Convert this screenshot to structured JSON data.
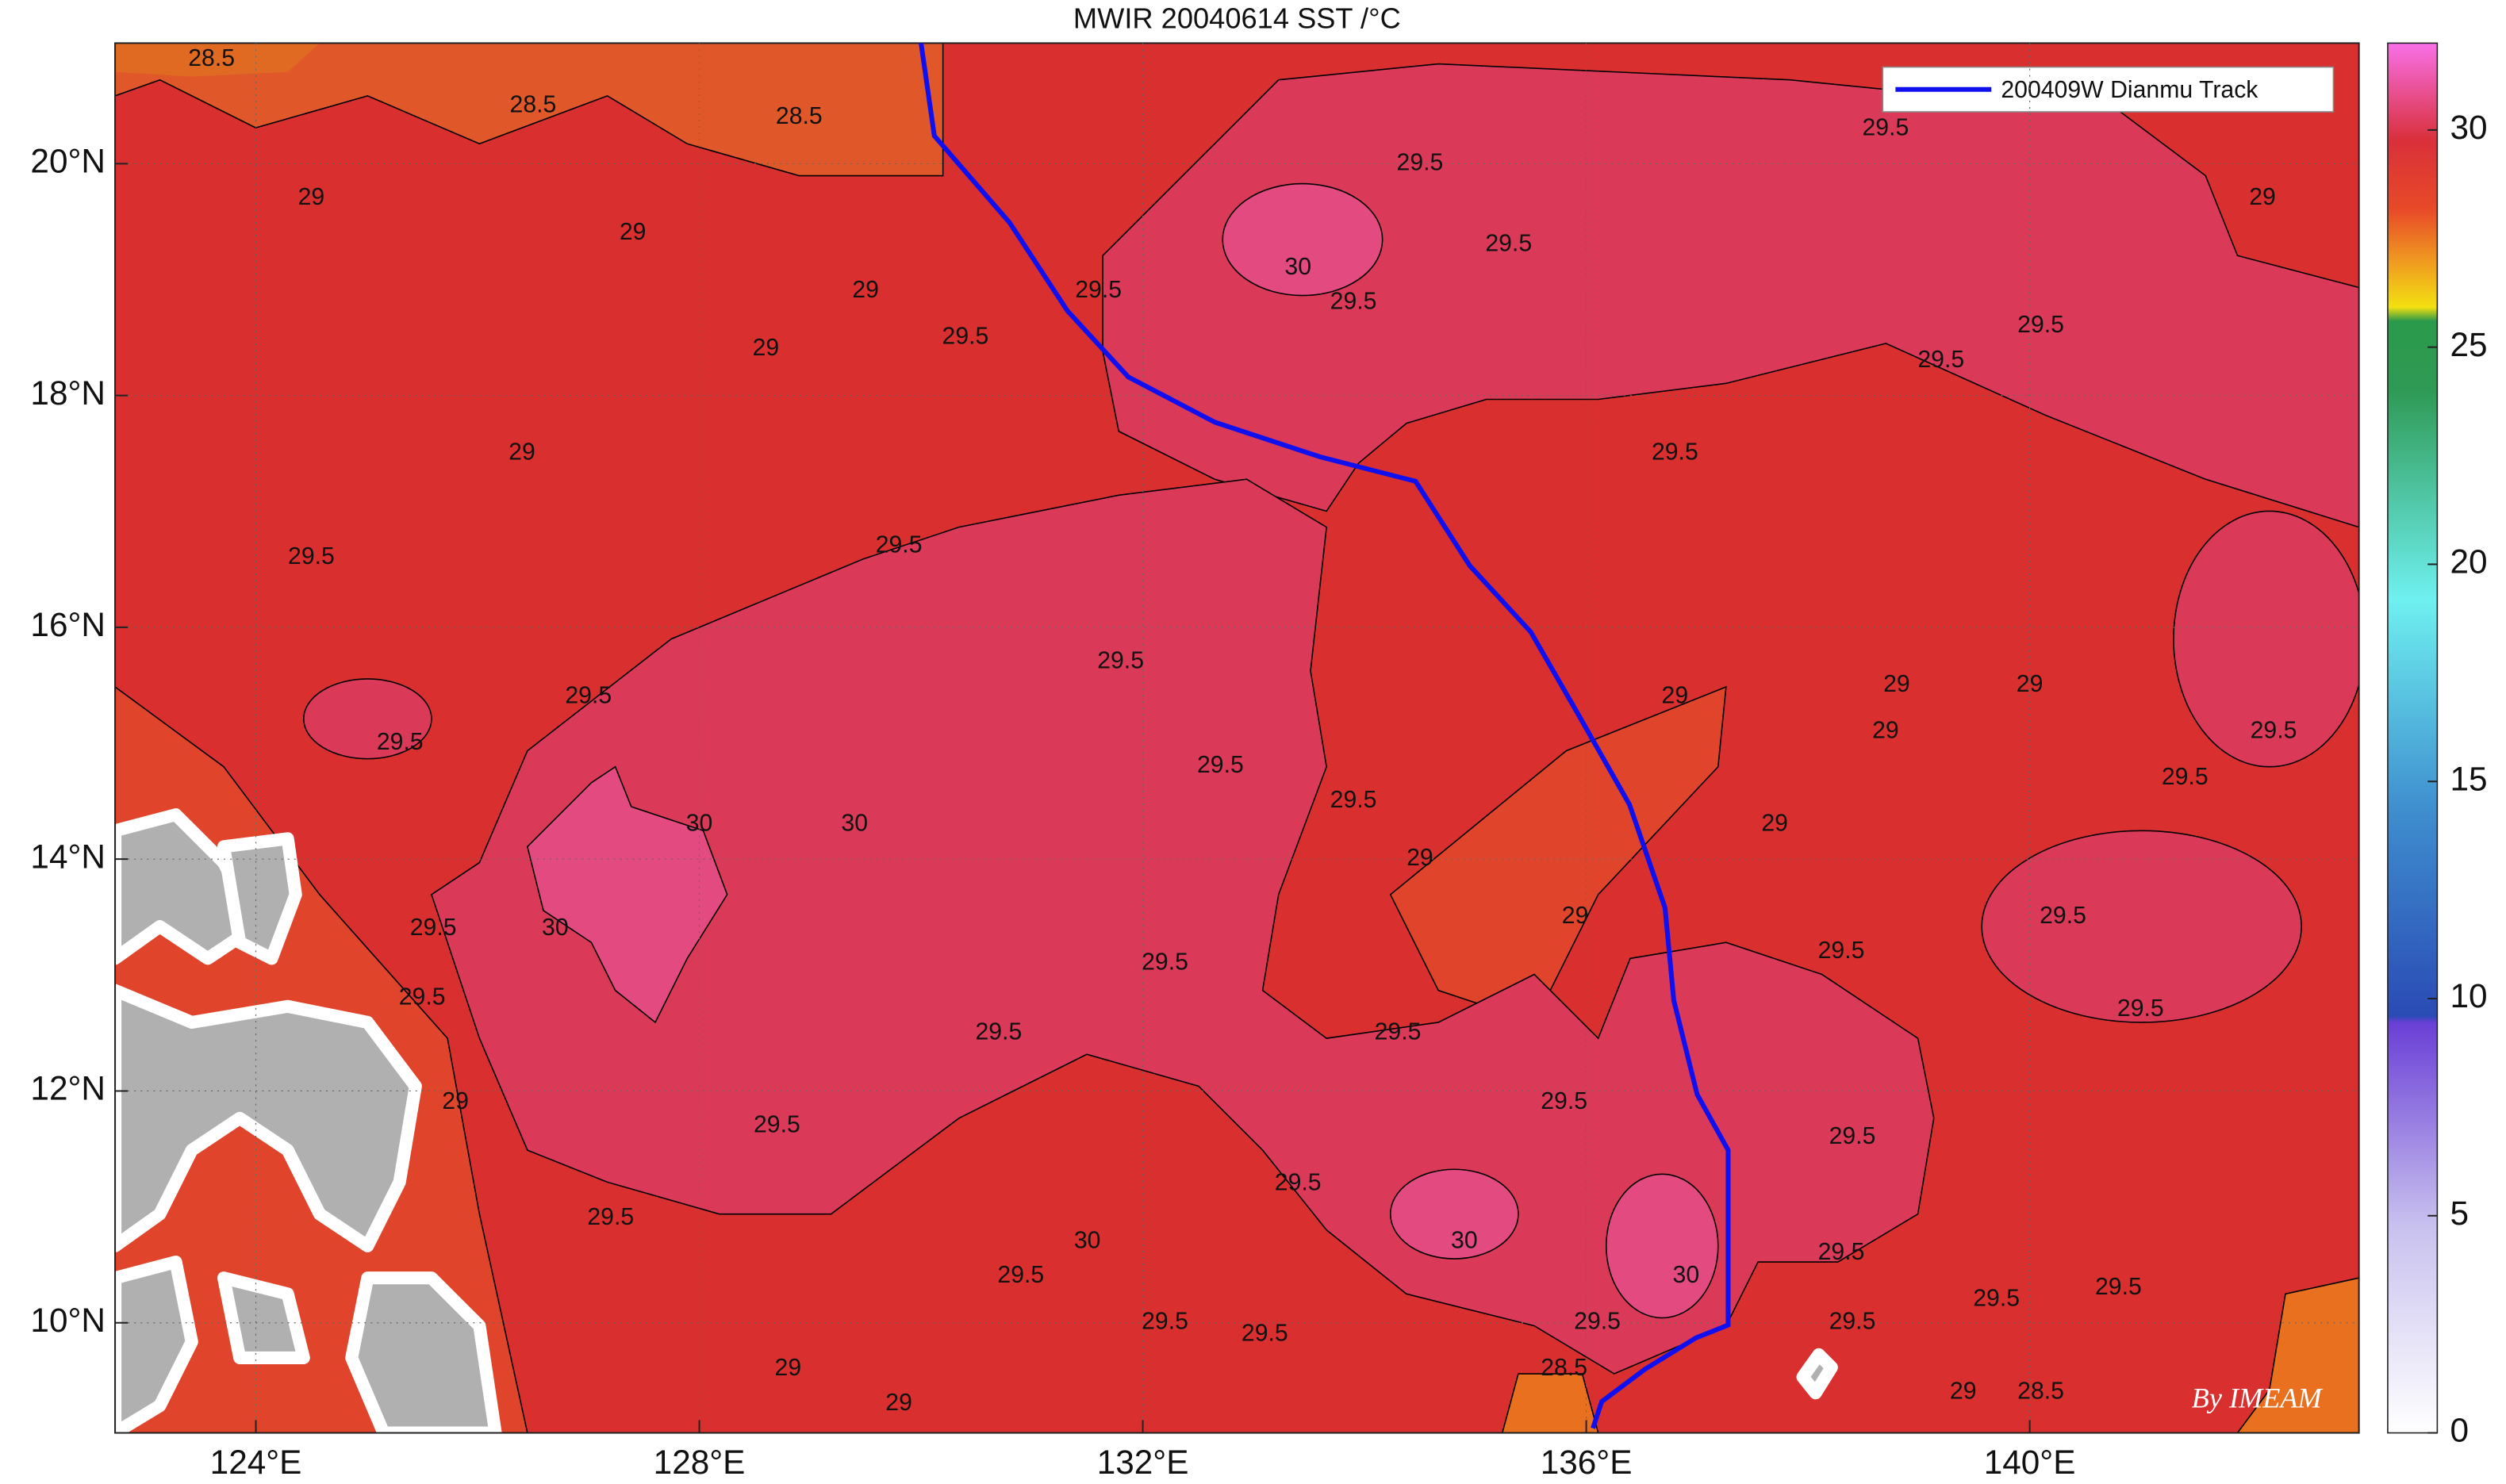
{
  "map": {
    "title": "MWIR 20040614 SST /°C",
    "lon_range": [
      122.73,
      142.97
    ],
    "lat_range": [
      9.05,
      21.04
    ],
    "lon_ticks": [
      {
        "value": 124,
        "label": "124°E"
      },
      {
        "value": 128,
        "label": "128°E"
      },
      {
        "value": 132,
        "label": "132°E"
      },
      {
        "value": 136,
        "label": "136°E"
      },
      {
        "value": 140,
        "label": "140°E"
      }
    ],
    "lat_ticks": [
      {
        "value": 10,
        "label": "10°N"
      },
      {
        "value": 12,
        "label": "12°N"
      },
      {
        "value": 14,
        "label": "14°N"
      },
      {
        "value": 16,
        "label": "16°N"
      },
      {
        "value": 18,
        "label": "18°N"
      },
      {
        "value": 20,
        "label": "20°N"
      }
    ],
    "track": {
      "name": "200409W Dianmu Track",
      "color": "#1010ee",
      "lon": [
        130.0,
        130.12,
        130.8,
        131.32,
        131.87,
        132.65,
        133.6,
        134.46,
        134.95,
        135.5,
        135.94,
        136.39,
        136.71,
        136.79,
        137.0,
        137.28,
        137.28,
        136.99,
        136.53,
        136.14,
        136.06
      ],
      "lat": [
        21.04,
        20.24,
        19.49,
        18.73,
        18.16,
        17.77,
        17.47,
        17.26,
        16.53,
        15.96,
        15.23,
        14.47,
        13.58,
        12.78,
        11.97,
        11.49,
        9.98,
        9.87,
        9.6,
        9.32,
        9.09
      ]
    },
    "contour_labels": [
      {
        "text": "28.5",
        "lon": 123.6,
        "lat": 20.9
      },
      {
        "text": "28.5",
        "lon": 126.5,
        "lat": 20.5
      },
      {
        "text": "28.5",
        "lon": 128.9,
        "lat": 20.4
      },
      {
        "text": "29",
        "lon": 124.5,
        "lat": 19.7
      },
      {
        "text": "29",
        "lon": 127.4,
        "lat": 19.4
      },
      {
        "text": "29",
        "lon": 129.5,
        "lat": 18.9
      },
      {
        "text": "29",
        "lon": 128.6,
        "lat": 18.4
      },
      {
        "text": "29.5",
        "lon": 130.4,
        "lat": 18.5
      },
      {
        "text": "29.5",
        "lon": 131.6,
        "lat": 18.9
      },
      {
        "text": "30",
        "lon": 133.4,
        "lat": 19.1
      },
      {
        "text": "29.5",
        "lon": 133.9,
        "lat": 18.8
      },
      {
        "text": "29.5",
        "lon": 134.5,
        "lat": 20.0
      },
      {
        "text": "29.5",
        "lon": 135.3,
        "lat": 19.3
      },
      {
        "text": "29.5",
        "lon": 138.7,
        "lat": 20.3
      },
      {
        "text": "29",
        "lon": 142.1,
        "lat": 19.7
      },
      {
        "text": "29.5",
        "lon": 140.1,
        "lat": 18.6
      },
      {
        "text": "29.5",
        "lon": 139.2,
        "lat": 18.3
      },
      {
        "text": "29.5",
        "lon": 136.8,
        "lat": 17.5
      },
      {
        "text": "29",
        "lon": 126.4,
        "lat": 17.5
      },
      {
        "text": "29.5",
        "lon": 124.5,
        "lat": 16.6
      },
      {
        "text": "29.5",
        "lon": 129.8,
        "lat": 16.7
      },
      {
        "text": "29.5",
        "lon": 127.0,
        "lat": 15.4
      },
      {
        "text": "29.5",
        "lon": 125.3,
        "lat": 15.0
      },
      {
        "text": "29.5",
        "lon": 131.8,
        "lat": 15.7
      },
      {
        "text": "29.5",
        "lon": 132.7,
        "lat": 14.8
      },
      {
        "text": "29.5",
        "lon": 133.9,
        "lat": 14.5
      },
      {
        "text": "30",
        "lon": 128.0,
        "lat": 14.3
      },
      {
        "text": "30",
        "lon": 129.4,
        "lat": 14.3
      },
      {
        "text": "30",
        "lon": 126.7,
        "lat": 13.4
      },
      {
        "text": "29",
        "lon": 134.5,
        "lat": 14.0
      },
      {
        "text": "29",
        "lon": 135.9,
        "lat": 13.5
      },
      {
        "text": "29",
        "lon": 136.8,
        "lat": 15.4
      },
      {
        "text": "29",
        "lon": 138.8,
        "lat": 15.5
      },
      {
        "text": "29",
        "lon": 140.0,
        "lat": 15.5
      },
      {
        "text": "29.5",
        "lon": 142.2,
        "lat": 15.1
      },
      {
        "text": "29.5",
        "lon": 141.4,
        "lat": 14.7
      },
      {
        "text": "29.5",
        "lon": 125.6,
        "lat": 13.4
      },
      {
        "text": "29.5",
        "lon": 125.5,
        "lat": 12.8
      },
      {
        "text": "29",
        "lon": 125.8,
        "lat": 11.9
      },
      {
        "text": "29.5",
        "lon": 132.2,
        "lat": 13.1
      },
      {
        "text": "29.5",
        "lon": 130.7,
        "lat": 12.5
      },
      {
        "text": "29.5",
        "lon": 128.7,
        "lat": 11.7
      },
      {
        "text": "29.5",
        "lon": 134.3,
        "lat": 12.5
      },
      {
        "text": "29.5",
        "lon": 135.8,
        "lat": 11.9
      },
      {
        "text": "29.5",
        "lon": 138.4,
        "lat": 11.6
      },
      {
        "text": "29.5",
        "lon": 127.2,
        "lat": 10.9
      },
      {
        "text": "29.5",
        "lon": 133.4,
        "lat": 11.2
      },
      {
        "text": "30",
        "lon": 134.9,
        "lat": 10.7
      },
      {
        "text": "30",
        "lon": 136.9,
        "lat": 10.4
      },
      {
        "text": "30",
        "lon": 131.5,
        "lat": 10.7
      },
      {
        "text": "29.5",
        "lon": 130.9,
        "lat": 10.4
      },
      {
        "text": "29.5",
        "lon": 133.1,
        "lat": 9.9
      },
      {
        "text": "29.5",
        "lon": 132.2,
        "lat": 10.0
      },
      {
        "text": "29.5",
        "lon": 136.1,
        "lat": 10.0
      },
      {
        "text": "28.5",
        "lon": 135.8,
        "lat": 9.6
      },
      {
        "text": "29",
        "lon": 128.8,
        "lat": 9.6
      },
      {
        "text": "29",
        "lon": 129.8,
        "lat": 9.3
      },
      {
        "text": "29.5",
        "lon": 138.3,
        "lat": 10.6
      },
      {
        "text": "29.5",
        "lon": 138.4,
        "lat": 10.0
      },
      {
        "text": "29.5",
        "lon": 139.7,
        "lat": 10.2
      },
      {
        "text": "29.5",
        "lon": 140.8,
        "lat": 10.3
      },
      {
        "text": "28.5",
        "lon": 140.1,
        "lat": 9.4
      },
      {
        "text": "29",
        "lon": 139.4,
        "lat": 9.4
      },
      {
        "text": "29.5",
        "lon": 140.3,
        "lat": 13.5
      },
      {
        "text": "29.5",
        "lon": 141.0,
        "lat": 12.7
      },
      {
        "text": "29.5",
        "lon": 138.3,
        "lat": 13.2
      },
      {
        "text": "29",
        "lon": 137.7,
        "lat": 14.3
      },
      {
        "text": "29",
        "lon": 138.7,
        "lat": 15.1
      }
    ],
    "colorbar": {
      "range": [
        0,
        32
      ],
      "ticks": [
        0,
        5,
        10,
        15,
        20,
        25,
        30
      ]
    },
    "credit": "By IMEAM"
  }
}
